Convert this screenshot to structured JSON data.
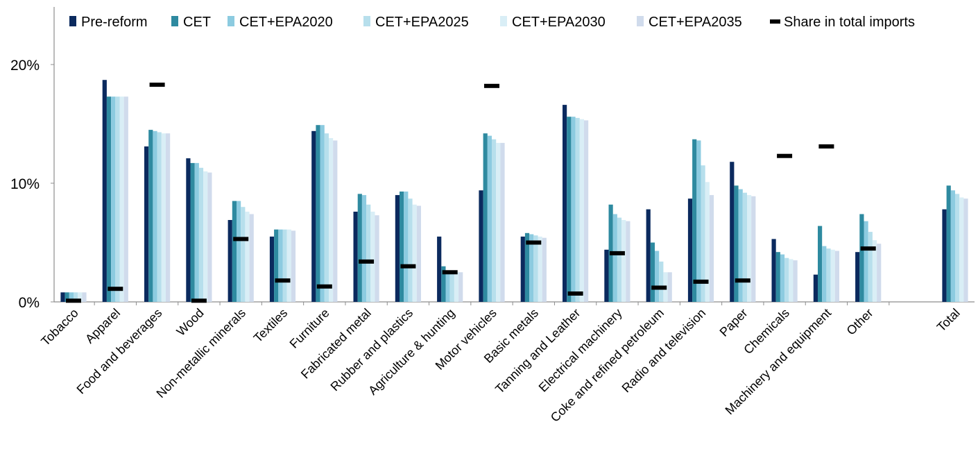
{
  "chart_data": {
    "type": "bar",
    "title": "",
    "xlabel": "",
    "ylabel": "",
    "ylim": [
      0,
      0.2
    ],
    "yticks": [
      {
        "value": 0,
        "label": "0%"
      },
      {
        "value": 0.1,
        "label": "10%"
      },
      {
        "value": 0.2,
        "label": "20%"
      }
    ],
    "legend_position": "top",
    "grid": false,
    "categories": [
      "Tobacco",
      "Apparel",
      "Food and beverages",
      "Wood",
      "Non-metallic minerals",
      "Textiles",
      "Furniture",
      "Fabricated metal",
      "Rubber and plastics",
      "Agriculture & hunting",
      "Motor vehicles",
      "Basic metals",
      "Tanning and Leather",
      "Electrical machinery",
      "Coke and refined petroleum",
      "Radio and television",
      "Paper",
      "Chemicals",
      "Machinery and equipment",
      "Other",
      "Total"
    ],
    "series": [
      {
        "name": "Pre-reform",
        "color": "#0b2a5e",
        "values": [
          0.008,
          0.187,
          0.131,
          0.121,
          0.069,
          0.055,
          0.144,
          0.076,
          0.09,
          0.055,
          0.094,
          0.055,
          0.166,
          0.044,
          0.078,
          0.087,
          0.118,
          0.053,
          0.023,
          0.042,
          0.078
        ]
      },
      {
        "name": "CET",
        "color": "#2e8aa0",
        "values": [
          0.008,
          0.173,
          0.145,
          0.117,
          0.085,
          0.061,
          0.149,
          0.091,
          0.093,
          0.03,
          0.142,
          0.058,
          0.156,
          0.082,
          0.05,
          0.137,
          0.098,
          0.042,
          0.064,
          0.074,
          0.098
        ]
      },
      {
        "name": "CET+EPA2020",
        "color": "#8ccbe0",
        "values": [
          0.008,
          0.173,
          0.144,
          0.117,
          0.085,
          0.061,
          0.149,
          0.09,
          0.093,
          0.025,
          0.14,
          0.057,
          0.156,
          0.074,
          0.043,
          0.136,
          0.095,
          0.04,
          0.047,
          0.068,
          0.094
        ]
      },
      {
        "name": "CET+EPA2025",
        "color": "#b7dfec",
        "values": [
          0.008,
          0.173,
          0.143,
          0.113,
          0.08,
          0.061,
          0.142,
          0.082,
          0.087,
          0.025,
          0.137,
          0.056,
          0.155,
          0.071,
          0.034,
          0.115,
          0.092,
          0.037,
          0.045,
          0.059,
          0.091
        ]
      },
      {
        "name": "CET+EPA2030",
        "color": "#d9eef6",
        "values": [
          0.008,
          0.173,
          0.142,
          0.11,
          0.076,
          0.061,
          0.138,
          0.076,
          0.082,
          0.025,
          0.134,
          0.055,
          0.154,
          0.069,
          0.025,
          0.101,
          0.09,
          0.036,
          0.044,
          0.052,
          0.088
        ]
      },
      {
        "name": "CET+EPA2035",
        "color": "#d0dbec",
        "values": [
          0.008,
          0.173,
          0.142,
          0.109,
          0.074,
          0.06,
          0.136,
          0.073,
          0.081,
          0.025,
          0.134,
          0.054,
          0.153,
          0.068,
          0.025,
          0.09,
          0.089,
          0.035,
          0.043,
          0.049,
          0.087
        ]
      }
    ],
    "markers": {
      "name": "Share in total imports",
      "color": "#000000",
      "values": [
        0.001,
        0.011,
        0.183,
        0.001,
        0.053,
        0.018,
        0.013,
        0.034,
        0.03,
        0.025,
        0.182,
        0.05,
        0.007,
        0.041,
        0.012,
        0.017,
        0.018,
        0.123,
        0.131,
        0.045,
        null
      ]
    }
  }
}
